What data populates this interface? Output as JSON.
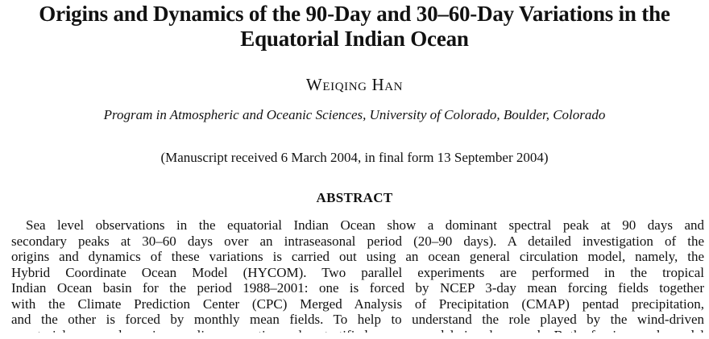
{
  "paper": {
    "title_lines": [
      "Origins and Dynamics of the 90-Day and 30–60-Day Variations in the",
      "Equatorial Indian Ocean"
    ],
    "author": "Weiqing Han",
    "affiliation": "Program in Atmospheric and Oceanic Sciences, University of Colorado, Boulder, Colorado",
    "manuscript_note": "(Manuscript received 6 March 2004, in final form 13 September 2004)",
    "abstract_heading": "ABSTRACT",
    "abstract_lines": [
      "Sea level observations in the equatorial Indian Ocean show a dominant spectral peak at 90 days and",
      "secondary peaks at 30–60 days over an intraseasonal period (20–90 days). A detailed investigation of the",
      "origins and dynamics of these variations is carried out using an ocean general circulation model, namely, the",
      "Hybrid Coordinate Ocean Model (HYCOM). Two parallel experiments are performed in the tropical",
      "Indian Ocean basin for the period 1988–2001: one is forced by NCEP 3-day mean forcing fields together",
      "with the Climate Prediction Center (CPC) Merged Analysis of Precipitation (CMAP) pentad precipitation,",
      "and the other is forced by monthly mean fields. To help to understand the role played by the wind-driven",
      "equatorial wave dynamics, a linear continuously stratified ocean model is also used. Both forcing and model"
    ]
  }
}
